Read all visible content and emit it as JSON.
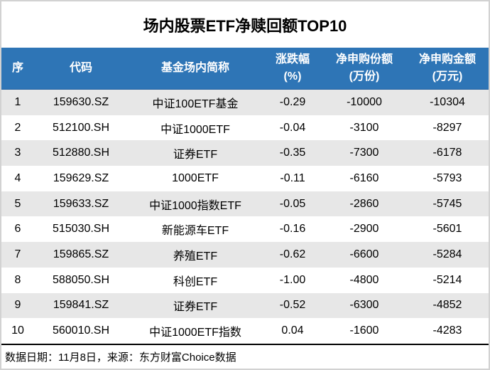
{
  "title": "场内股票ETF净赎回额TOP10",
  "chart_data": {
    "type": "table",
    "title": "场内股票ETF净赎回额TOP10",
    "columns": [
      "序",
      "代码",
      "基金场内简称",
      "涨跌幅\n(%)",
      "净申购份额\n(万份)",
      "净申购金额\n(万元)"
    ],
    "rows": [
      [
        "1",
        "159630.SZ",
        "中证100ETF基金",
        "-0.29",
        "-10000",
        "-10304"
      ],
      [
        "2",
        "512100.SH",
        "中证1000ETF",
        "-0.04",
        "-3100",
        "-8297"
      ],
      [
        "3",
        "512880.SH",
        "证券ETF",
        "-0.35",
        "-7300",
        "-6178"
      ],
      [
        "4",
        "159629.SZ",
        "1000ETF",
        "-0.11",
        "-6160",
        "-5793"
      ],
      [
        "5",
        "159633.SZ",
        "中证1000指数ETF",
        "-0.05",
        "-2860",
        "-5745"
      ],
      [
        "6",
        "515030.SH",
        "新能源车ETF",
        "-0.16",
        "-2900",
        "-5601"
      ],
      [
        "7",
        "159865.SZ",
        "养殖ETF",
        "-0.62",
        "-6600",
        "-5284"
      ],
      [
        "8",
        "588050.SH",
        "科创ETF",
        "-1.00",
        "-4800",
        "-5214"
      ],
      [
        "9",
        "159841.SZ",
        "证券ETF",
        "-0.52",
        "-6300",
        "-4852"
      ],
      [
        "10",
        "560010.SH",
        "中证1000ETF指数",
        "0.04",
        "-1600",
        "-4283"
      ]
    ],
    "notes": "数据日期：11月8日，来源：东方财富Choice数据",
    "layout": {
      "header_rows": 1,
      "grid": "alternating-row-shading",
      "legend": "none"
    }
  },
  "footer": {
    "note": "数据日期：11月8日，来源：东方财富Choice数据"
  },
  "colors": {
    "header_bg": "#2E75B6",
    "header_text": "#FFFFFF",
    "alt_row_bg": "#E7E7E7",
    "row_bg": "#FFFFFF",
    "title_text": "#000000",
    "body_text": "#000000",
    "divider": "#000000",
    "page_border": "#D2D2D2"
  }
}
